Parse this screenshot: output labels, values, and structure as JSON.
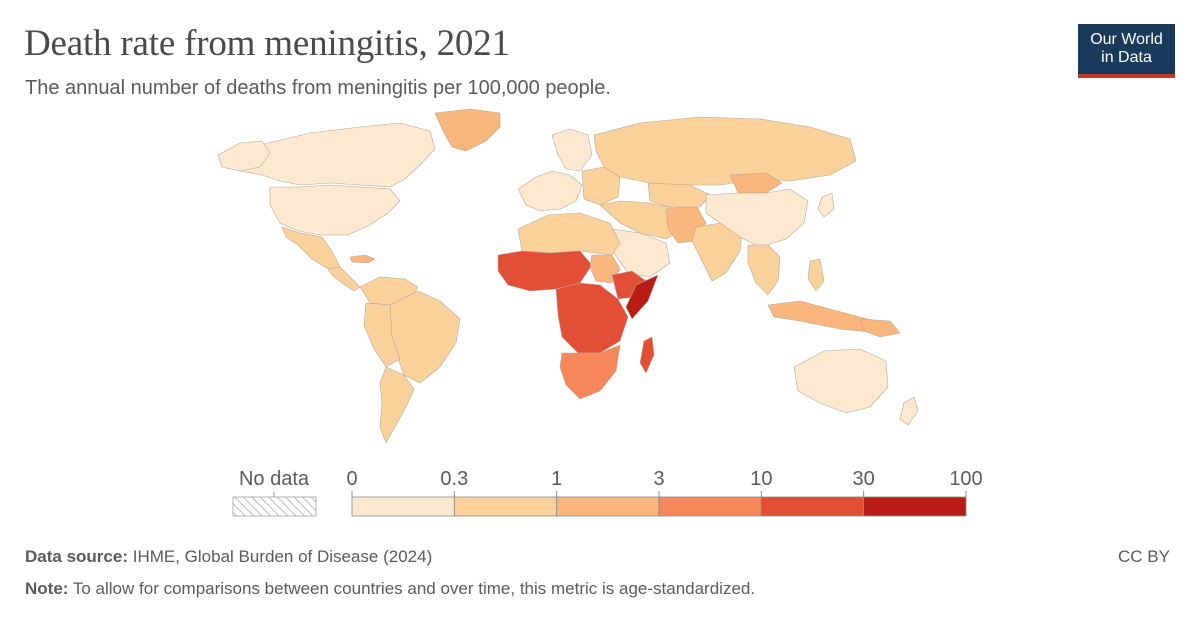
{
  "header": {
    "title": "Death rate from meningitis, 2021",
    "subtitle": "The annual number of deaths from meningitis per 100,000 people."
  },
  "logo": {
    "line1": "Our World",
    "line2": "in Data"
  },
  "legend": {
    "no_data_label": "No data",
    "ticks": [
      "0",
      "0.3",
      "1",
      "3",
      "10",
      "30",
      "100"
    ],
    "colors": [
      "#fde9cf",
      "#fbd19b",
      "#f8b57c",
      "#f5875a",
      "#e24f36",
      "#b81c14"
    ]
  },
  "map_colors": {
    "ocean": "#ffffff",
    "border": "#b8a898",
    "lowest": "#fde9cf",
    "low": "#fbd19b",
    "mid": "#f8b57c",
    "high": "#f5875a",
    "very_high": "#e24f36",
    "highest": "#b81c14"
  },
  "footer": {
    "source_label": "Data source:",
    "source_text": "IHME, Global Burden of Disease (2024)",
    "note_label": "Note:",
    "note_text": "To allow for comparisons between countries and over time, this metric is age-standardized.",
    "license": "CC BY"
  }
}
